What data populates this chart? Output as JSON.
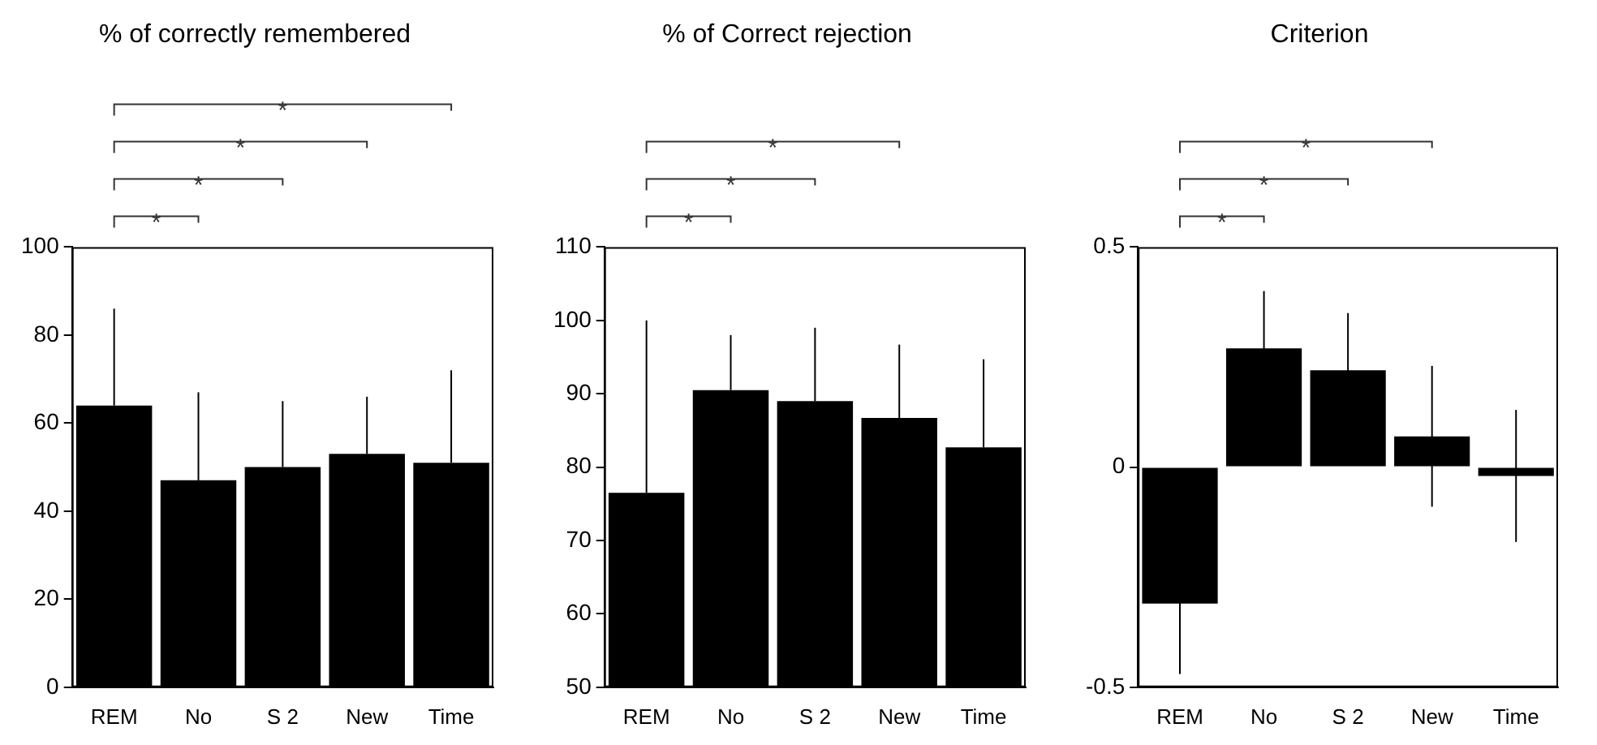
{
  "chart_data": [
    {
      "type": "bar",
      "title": "% of correctly remembered",
      "categories": [
        "REM",
        "No",
        "S 2",
        "New",
        "Time"
      ],
      "values": [
        64,
        47,
        50,
        53,
        51
      ],
      "errors": [
        [
          64,
          86
        ],
        [
          47,
          67
        ],
        [
          50,
          65
        ],
        [
          53,
          66
        ],
        [
          51,
          72
        ]
      ],
      "color": "#000000",
      "ylim": [
        0,
        100
      ],
      "yticks": [
        0,
        20,
        40,
        60,
        80,
        100
      ],
      "annotations": [
        "*",
        "*",
        "*",
        "*"
      ]
    },
    {
      "type": "bar",
      "title": "% of Correct rejection",
      "categories": [
        "REM",
        "No",
        "S 2",
        "New",
        "Time"
      ],
      "values": [
        76.5,
        90.5,
        89,
        86.7,
        82.7
      ],
      "errors": [
        [
          76.5,
          100
        ],
        [
          90.5,
          98
        ],
        [
          89,
          99
        ],
        [
          86.7,
          96.7
        ],
        [
          82.7,
          94.7
        ]
      ],
      "color": "#000000",
      "ylim": [
        50,
        110
      ],
      "yticks": [
        50,
        60,
        70,
        80,
        90,
        100,
        110
      ],
      "annotations": [
        "*",
        "*",
        "*"
      ]
    },
    {
      "type": "bar",
      "title": "Criterion",
      "categories": [
        "REM",
        "No",
        "S 2",
        "New",
        "Time"
      ],
      "values": [
        -0.31,
        0.27,
        0.22,
        0.07,
        -0.02
      ],
      "errors": [
        0.16,
        0.13,
        0.13,
        0.16,
        0.15
      ],
      "color": "#000000",
      "ylim": [
        -0.5,
        0.5
      ],
      "yticks": [
        -0.5,
        0,
        0.5
      ],
      "annotations": [
        "*",
        "*",
        "*"
      ]
    }
  ]
}
